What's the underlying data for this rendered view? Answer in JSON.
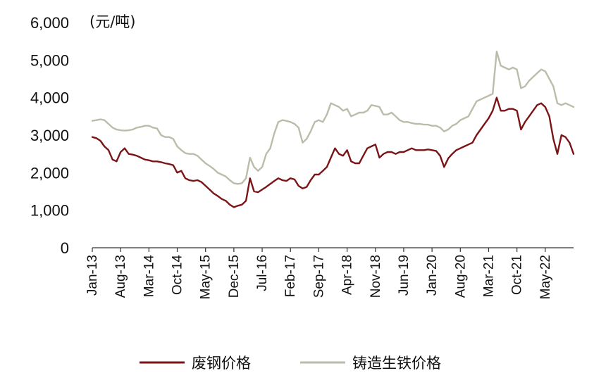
{
  "chart_data": {
    "type": "line",
    "unit_label": "(元/吨)",
    "ylim": [
      0,
      6000
    ],
    "yticks": [
      {
        "value": 0,
        "label": "0"
      },
      {
        "value": 1000,
        "label": "1,000"
      },
      {
        "value": 2000,
        "label": "2,000"
      },
      {
        "value": 3000,
        "label": "3,000"
      },
      {
        "value": 4000,
        "label": "4,000"
      },
      {
        "value": 5000,
        "label": "5,000"
      },
      {
        "value": 6000,
        "label": "6,000"
      }
    ],
    "xlim": [
      "2013-01",
      "2022-12"
    ],
    "xticks": [
      {
        "value": "2013-01",
        "label": "Jan-13"
      },
      {
        "value": "2013-08",
        "label": "Aug-13"
      },
      {
        "value": "2014-03",
        "label": "Mar-14"
      },
      {
        "value": "2014-10",
        "label": "Oct-14"
      },
      {
        "value": "2015-05",
        "label": "May-15"
      },
      {
        "value": "2015-12",
        "label": "Dec-15"
      },
      {
        "value": "2016-07",
        "label": "Jul-16"
      },
      {
        "value": "2017-02",
        "label": "Feb-17"
      },
      {
        "value": "2017-09",
        "label": "Sep-17"
      },
      {
        "value": "2018-04",
        "label": "Apr-18"
      },
      {
        "value": "2018-11",
        "label": "Nov-18"
      },
      {
        "value": "2019-06",
        "label": "Jun-19"
      },
      {
        "value": "2020-01",
        "label": "Jan-20"
      },
      {
        "value": "2020-08",
        "label": "Aug-20"
      },
      {
        "value": "2021-03",
        "label": "Mar-21"
      },
      {
        "value": "2021-10",
        "label": "Oct-21"
      },
      {
        "value": "2022-05",
        "label": "May-22"
      }
    ],
    "grid": false,
    "legend_position": "bottom",
    "series": [
      {
        "name": "废钢价格",
        "color": "#7b1416",
        "points": [
          [
            "2013-01",
            2950
          ],
          [
            "2013-02",
            2920
          ],
          [
            "2013-03",
            2850
          ],
          [
            "2013-04",
            2700
          ],
          [
            "2013-05",
            2600
          ],
          [
            "2013-06",
            2350
          ],
          [
            "2013-07",
            2300
          ],
          [
            "2013-08",
            2550
          ],
          [
            "2013-09",
            2650
          ],
          [
            "2013-10",
            2500
          ],
          [
            "2013-11",
            2480
          ],
          [
            "2013-12",
            2450
          ],
          [
            "2014-01",
            2400
          ],
          [
            "2014-02",
            2350
          ],
          [
            "2014-03",
            2330
          ],
          [
            "2014-04",
            2300
          ],
          [
            "2014-05",
            2300
          ],
          [
            "2014-06",
            2280
          ],
          [
            "2014-07",
            2250
          ],
          [
            "2014-08",
            2230
          ],
          [
            "2014-09",
            2200
          ],
          [
            "2014-10",
            2000
          ],
          [
            "2014-11",
            2050
          ],
          [
            "2014-12",
            1850
          ],
          [
            "2015-01",
            1800
          ],
          [
            "2015-02",
            1780
          ],
          [
            "2015-03",
            1800
          ],
          [
            "2015-04",
            1750
          ],
          [
            "2015-05",
            1650
          ],
          [
            "2015-06",
            1550
          ],
          [
            "2015-07",
            1450
          ],
          [
            "2015-08",
            1380
          ],
          [
            "2015-09",
            1300
          ],
          [
            "2015-10",
            1250
          ],
          [
            "2015-11",
            1150
          ],
          [
            "2015-12",
            1080
          ],
          [
            "2016-01",
            1120
          ],
          [
            "2016-02",
            1150
          ],
          [
            "2016-03",
            1250
          ],
          [
            "2016-04",
            1850
          ],
          [
            "2016-05",
            1500
          ],
          [
            "2016-06",
            1480
          ],
          [
            "2016-07",
            1550
          ],
          [
            "2016-08",
            1620
          ],
          [
            "2016-09",
            1700
          ],
          [
            "2016-10",
            1780
          ],
          [
            "2016-11",
            1850
          ],
          [
            "2016-12",
            1800
          ],
          [
            "2017-01",
            1780
          ],
          [
            "2017-02",
            1850
          ],
          [
            "2017-03",
            1820
          ],
          [
            "2017-04",
            1650
          ],
          [
            "2017-05",
            1580
          ],
          [
            "2017-06",
            1620
          ],
          [
            "2017-07",
            1800
          ],
          [
            "2017-08",
            1950
          ],
          [
            "2017-09",
            1950
          ],
          [
            "2017-10",
            2050
          ],
          [
            "2017-11",
            2150
          ],
          [
            "2017-12",
            2400
          ],
          [
            "2018-01",
            2650
          ],
          [
            "2018-02",
            2500
          ],
          [
            "2018-03",
            2450
          ],
          [
            "2018-04",
            2600
          ],
          [
            "2018-05",
            2300
          ],
          [
            "2018-06",
            2250
          ],
          [
            "2018-07",
            2250
          ],
          [
            "2018-08",
            2450
          ],
          [
            "2018-09",
            2650
          ],
          [
            "2018-10",
            2700
          ],
          [
            "2018-11",
            2750
          ],
          [
            "2018-12",
            2400
          ],
          [
            "2019-01",
            2500
          ],
          [
            "2019-02",
            2550
          ],
          [
            "2019-03",
            2550
          ],
          [
            "2019-04",
            2500
          ],
          [
            "2019-05",
            2550
          ],
          [
            "2019-06",
            2550
          ],
          [
            "2019-07",
            2600
          ],
          [
            "2019-08",
            2650
          ],
          [
            "2019-09",
            2600
          ],
          [
            "2019-10",
            2600
          ],
          [
            "2019-11",
            2600
          ],
          [
            "2019-12",
            2620
          ],
          [
            "2020-01",
            2600
          ],
          [
            "2020-02",
            2580
          ],
          [
            "2020-03",
            2450
          ],
          [
            "2020-04",
            2150
          ],
          [
            "2020-05",
            2380
          ],
          [
            "2020-06",
            2500
          ],
          [
            "2020-07",
            2600
          ],
          [
            "2020-08",
            2650
          ],
          [
            "2020-09",
            2700
          ],
          [
            "2020-10",
            2750
          ],
          [
            "2020-11",
            2800
          ],
          [
            "2020-12",
            3000
          ],
          [
            "2021-01",
            3150
          ],
          [
            "2021-02",
            3300
          ],
          [
            "2021-03",
            3450
          ],
          [
            "2021-04",
            3650
          ],
          [
            "2021-05",
            4000
          ],
          [
            "2021-06",
            3650
          ],
          [
            "2021-07",
            3650
          ],
          [
            "2021-08",
            3700
          ],
          [
            "2021-09",
            3700
          ],
          [
            "2021-10",
            3650
          ],
          [
            "2021-11",
            3150
          ],
          [
            "2021-12",
            3350
          ],
          [
            "2022-01",
            3500
          ],
          [
            "2022-02",
            3650
          ],
          [
            "2022-03",
            3800
          ],
          [
            "2022-04",
            3850
          ],
          [
            "2022-05",
            3750
          ],
          [
            "2022-06",
            3500
          ],
          [
            "2022-07",
            2900
          ],
          [
            "2022-08",
            2500
          ],
          [
            "2022-09",
            3000
          ],
          [
            "2022-10",
            2950
          ],
          [
            "2022-11",
            2800
          ],
          [
            "2022-12",
            2500
          ]
        ]
      },
      {
        "name": "铸造生铁价格",
        "color": "#bcbcaa",
        "points": [
          [
            "2013-01",
            3380
          ],
          [
            "2013-02",
            3400
          ],
          [
            "2013-03",
            3420
          ],
          [
            "2013-04",
            3400
          ],
          [
            "2013-05",
            3300
          ],
          [
            "2013-06",
            3200
          ],
          [
            "2013-07",
            3150
          ],
          [
            "2013-08",
            3130
          ],
          [
            "2013-09",
            3120
          ],
          [
            "2013-10",
            3130
          ],
          [
            "2013-11",
            3150
          ],
          [
            "2013-12",
            3200
          ],
          [
            "2014-01",
            3220
          ],
          [
            "2014-02",
            3250
          ],
          [
            "2014-03",
            3250
          ],
          [
            "2014-04",
            3200
          ],
          [
            "2014-05",
            3180
          ],
          [
            "2014-06",
            3000
          ],
          [
            "2014-07",
            2950
          ],
          [
            "2014-08",
            2950
          ],
          [
            "2014-09",
            2900
          ],
          [
            "2014-10",
            2700
          ],
          [
            "2014-11",
            2600
          ],
          [
            "2014-12",
            2520
          ],
          [
            "2015-01",
            2500
          ],
          [
            "2015-02",
            2500
          ],
          [
            "2015-03",
            2450
          ],
          [
            "2015-04",
            2350
          ],
          [
            "2015-05",
            2250
          ],
          [
            "2015-06",
            2180
          ],
          [
            "2015-07",
            2100
          ],
          [
            "2015-08",
            2000
          ],
          [
            "2015-09",
            1950
          ],
          [
            "2015-10",
            1900
          ],
          [
            "2015-11",
            1800
          ],
          [
            "2015-12",
            1720
          ],
          [
            "2016-01",
            1700
          ],
          [
            "2016-02",
            1720
          ],
          [
            "2016-03",
            1850
          ],
          [
            "2016-04",
            2400
          ],
          [
            "2016-05",
            2150
          ],
          [
            "2016-06",
            2050
          ],
          [
            "2016-07",
            2150
          ],
          [
            "2016-08",
            2500
          ],
          [
            "2016-09",
            2650
          ],
          [
            "2016-10",
            3050
          ],
          [
            "2016-11",
            3350
          ],
          [
            "2016-12",
            3400
          ],
          [
            "2017-01",
            3380
          ],
          [
            "2017-02",
            3350
          ],
          [
            "2017-03",
            3300
          ],
          [
            "2017-04",
            3200
          ],
          [
            "2017-05",
            2800
          ],
          [
            "2017-06",
            2900
          ],
          [
            "2017-07",
            3100
          ],
          [
            "2017-08",
            3350
          ],
          [
            "2017-09",
            3400
          ],
          [
            "2017-10",
            3350
          ],
          [
            "2017-11",
            3550
          ],
          [
            "2017-12",
            3850
          ],
          [
            "2018-01",
            3800
          ],
          [
            "2018-02",
            3750
          ],
          [
            "2018-03",
            3650
          ],
          [
            "2018-04",
            3700
          ],
          [
            "2018-05",
            3500
          ],
          [
            "2018-06",
            3550
          ],
          [
            "2018-07",
            3600
          ],
          [
            "2018-08",
            3600
          ],
          [
            "2018-09",
            3650
          ],
          [
            "2018-10",
            3800
          ],
          [
            "2018-11",
            3780
          ],
          [
            "2018-12",
            3750
          ],
          [
            "2019-01",
            3550
          ],
          [
            "2019-02",
            3550
          ],
          [
            "2019-03",
            3600
          ],
          [
            "2019-04",
            3500
          ],
          [
            "2019-05",
            3400
          ],
          [
            "2019-06",
            3350
          ],
          [
            "2019-07",
            3350
          ],
          [
            "2019-08",
            3320
          ],
          [
            "2019-09",
            3300
          ],
          [
            "2019-10",
            3300
          ],
          [
            "2019-11",
            3280
          ],
          [
            "2019-12",
            3280
          ],
          [
            "2020-01",
            3250
          ],
          [
            "2020-02",
            3250
          ],
          [
            "2020-03",
            3200
          ],
          [
            "2020-04",
            3100
          ],
          [
            "2020-05",
            3150
          ],
          [
            "2020-06",
            3250
          ],
          [
            "2020-07",
            3300
          ],
          [
            "2020-08",
            3400
          ],
          [
            "2020-09",
            3450
          ],
          [
            "2020-10",
            3500
          ],
          [
            "2020-11",
            3700
          ],
          [
            "2020-12",
            3900
          ],
          [
            "2021-01",
            3950
          ],
          [
            "2021-02",
            4000
          ],
          [
            "2021-03",
            4050
          ],
          [
            "2021-04",
            4100
          ],
          [
            "2021-05",
            5230
          ],
          [
            "2021-06",
            4850
          ],
          [
            "2021-07",
            4800
          ],
          [
            "2021-08",
            4750
          ],
          [
            "2021-09",
            4800
          ],
          [
            "2021-10",
            4750
          ],
          [
            "2021-11",
            4250
          ],
          [
            "2021-12",
            4300
          ],
          [
            "2022-01",
            4450
          ],
          [
            "2022-02",
            4550
          ],
          [
            "2022-03",
            4650
          ],
          [
            "2022-04",
            4750
          ],
          [
            "2022-05",
            4700
          ],
          [
            "2022-06",
            4500
          ],
          [
            "2022-07",
            4300
          ],
          [
            "2022-08",
            3850
          ],
          [
            "2022-09",
            3800
          ],
          [
            "2022-10",
            3850
          ],
          [
            "2022-11",
            3800
          ],
          [
            "2022-12",
            3750
          ]
        ]
      }
    ]
  }
}
